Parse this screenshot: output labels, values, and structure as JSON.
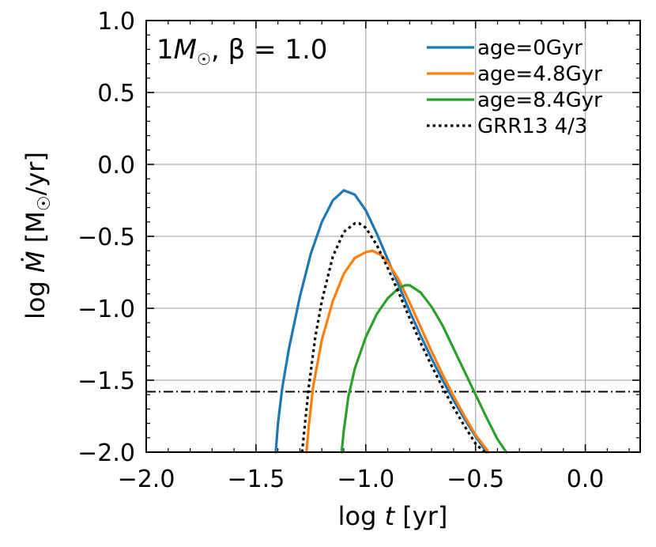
{
  "chart_data": {
    "type": "line",
    "annotation": {
      "mass_symbol": "M",
      "mass_prefix": "1",
      "sun_subscript": "☉",
      "beta_text": ", β = 1.0"
    },
    "xlabel": {
      "prefix": "log ",
      "variable": "t",
      "suffix": " [yr]"
    },
    "ylabel": {
      "prefix": "log ",
      "variable": "Ṁ",
      "unit_open": " [M",
      "unit_subscript": "☉",
      "unit_close": "/yr]"
    },
    "xlim": [
      -2.0,
      0.25
    ],
    "ylim": [
      -2.0,
      1.0
    ],
    "xticks": [
      -2.0,
      -1.5,
      -1.0,
      -0.5,
      0.0
    ],
    "xtick_labels": [
      "−2.0",
      "−1.5",
      "−1.0",
      "−0.5",
      "0.0"
    ],
    "yticks": [
      -2.0,
      -1.5,
      -1.0,
      -0.5,
      0.0,
      0.5,
      1.0
    ],
    "ytick_labels": [
      "−2.0",
      "−1.5",
      "−1.0",
      "−0.5",
      "0.0",
      "0.5",
      "1.0"
    ],
    "x_minor_step": 0.1,
    "y_minor_step": 0.1,
    "grid": true,
    "legend_position": "top-right",
    "hline": {
      "y": -1.58,
      "style": "dashdot",
      "color": "#000000"
    },
    "series": [
      {
        "name": "age=0Gyr",
        "color": "#1f77b4",
        "style": "solid",
        "x": [
          -1.41,
          -1.4,
          -1.38,
          -1.35,
          -1.3,
          -1.25,
          -1.2,
          -1.15,
          -1.1,
          -1.05,
          -1.0,
          -0.95,
          -0.9,
          -0.85,
          -0.8,
          -0.75,
          -0.7,
          -0.65,
          -0.6,
          -0.55,
          -0.5,
          -0.45
        ],
        "y": [
          -2.0,
          -1.8,
          -1.55,
          -1.28,
          -0.92,
          -0.62,
          -0.4,
          -0.25,
          -0.18,
          -0.21,
          -0.32,
          -0.48,
          -0.66,
          -0.84,
          -1.02,
          -1.19,
          -1.35,
          -1.5,
          -1.64,
          -1.77,
          -1.89,
          -2.0
        ]
      },
      {
        "name": "age=4.8Gyr",
        "color": "#ff7f0e",
        "style": "solid",
        "x": [
          -1.27,
          -1.26,
          -1.24,
          -1.2,
          -1.15,
          -1.1,
          -1.05,
          -1.0,
          -0.97,
          -0.93,
          -0.9,
          -0.85,
          -0.8,
          -0.75,
          -0.7,
          -0.65,
          -0.6,
          -0.55,
          -0.5,
          -0.44
        ],
        "y": [
          -2.0,
          -1.82,
          -1.55,
          -1.22,
          -0.95,
          -0.76,
          -0.65,
          -0.61,
          -0.6,
          -0.63,
          -0.68,
          -0.8,
          -0.96,
          -1.13,
          -1.3,
          -1.46,
          -1.61,
          -1.75,
          -1.88,
          -2.0
        ]
      },
      {
        "name": "age=8.4Gyr",
        "color": "#2ca02c",
        "style": "solid",
        "x": [
          -1.11,
          -1.1,
          -1.08,
          -1.05,
          -1.0,
          -0.95,
          -0.9,
          -0.85,
          -0.82,
          -0.8,
          -0.75,
          -0.7,
          -0.65,
          -0.6,
          -0.55,
          -0.5,
          -0.45,
          -0.4,
          -0.36
        ],
        "y": [
          -2.0,
          -1.85,
          -1.62,
          -1.42,
          -1.2,
          -1.04,
          -0.93,
          -0.86,
          -0.84,
          -0.84,
          -0.89,
          -0.99,
          -1.12,
          -1.28,
          -1.44,
          -1.6,
          -1.76,
          -1.91,
          -2.0
        ]
      },
      {
        "name": "GRR13 4/3",
        "color": "#000000",
        "style": "dotted",
        "x": [
          -1.29,
          -1.28,
          -1.26,
          -1.23,
          -1.2,
          -1.15,
          -1.1,
          -1.05,
          -1.03,
          -1.0,
          -0.95,
          -0.9,
          -0.85,
          -0.8,
          -0.75,
          -0.7,
          -0.65,
          -0.6,
          -0.55,
          -0.5,
          -0.46
        ],
        "y": [
          -2.0,
          -1.85,
          -1.55,
          -1.2,
          -0.95,
          -0.64,
          -0.47,
          -0.41,
          -0.41,
          -0.44,
          -0.56,
          -0.72,
          -0.89,
          -1.07,
          -1.24,
          -1.4,
          -1.55,
          -1.69,
          -1.82,
          -1.94,
          -2.0
        ]
      }
    ]
  }
}
